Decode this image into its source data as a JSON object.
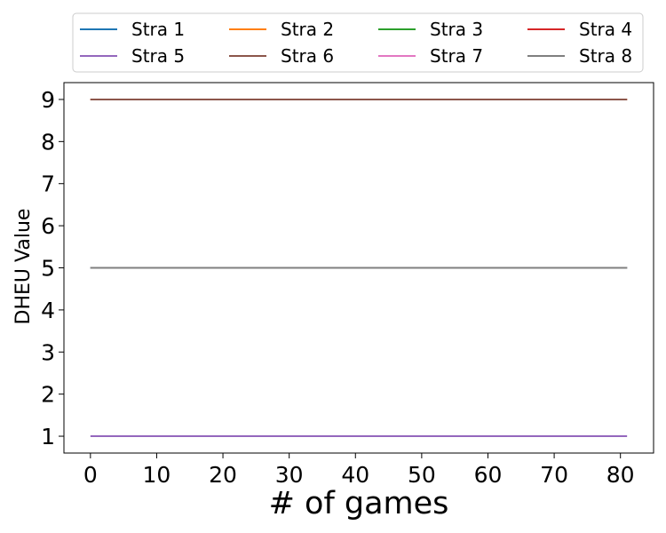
{
  "chart_data": {
    "type": "line",
    "title": "",
    "xlabel": "# of games",
    "ylabel": "DHEU Value",
    "xlim": [
      -4,
      85
    ],
    "ylim": [
      0.6,
      9.4
    ],
    "xticks": [
      0,
      10,
      20,
      30,
      40,
      50,
      60,
      70,
      80
    ],
    "yticks": [
      1,
      2,
      3,
      4,
      5,
      6,
      7,
      8,
      9
    ],
    "grid": false,
    "legend_position": "top",
    "legend_columns": 4,
    "x": [
      0,
      81
    ],
    "series": [
      {
        "name": "Stra 1",
        "color": "#1f77b4",
        "values": [
          5,
          5
        ]
      },
      {
        "name": "Stra 2",
        "color": "#ff7f0e",
        "values": [
          9,
          9
        ]
      },
      {
        "name": "Stra 3",
        "color": "#2ca02c",
        "values": [
          5,
          5
        ]
      },
      {
        "name": "Stra 4",
        "color": "#d62728",
        "values": [
          9,
          9
        ]
      },
      {
        "name": "Stra 5",
        "color": "#9467bd",
        "values": [
          1,
          1
        ]
      },
      {
        "name": "Stra 6",
        "color": "#8c564b",
        "values": [
          9,
          9
        ]
      },
      {
        "name": "Stra 7",
        "color": "#e377c2",
        "values": [
          5,
          5
        ]
      },
      {
        "name": "Stra 8",
        "color": "#7f7f7f",
        "values": [
          5,
          5
        ]
      }
    ]
  }
}
